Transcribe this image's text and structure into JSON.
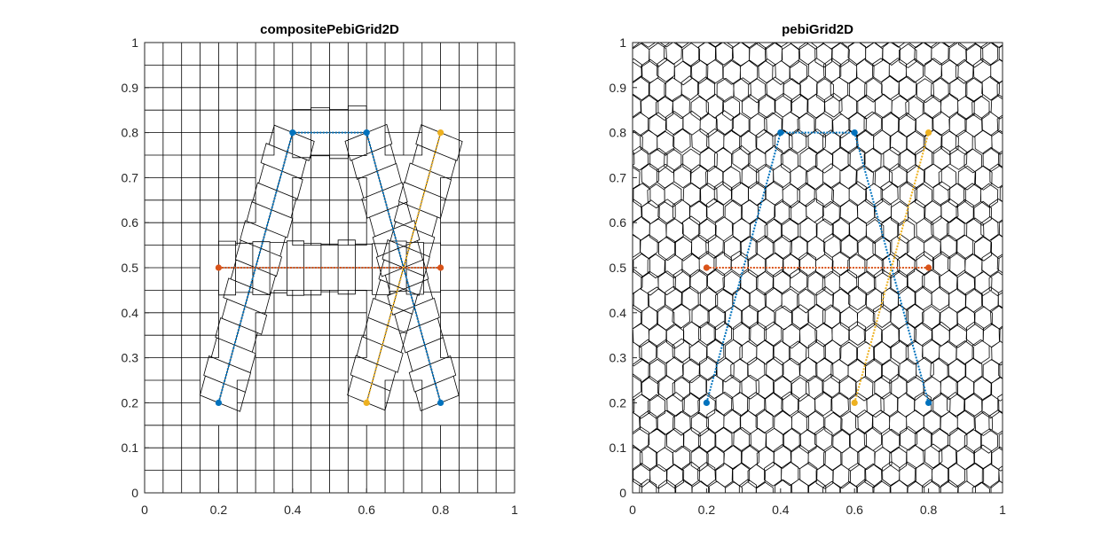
{
  "colors": {
    "blue": "#0072BD",
    "orange": "#D95319",
    "yellow": "#EDB120",
    "axis": "#262626",
    "mesh": "#000000"
  },
  "chart_data": [
    {
      "type": "scatter",
      "title": "compositePebiGrid2D",
      "xlabel": "",
      "ylabel": "",
      "xlim": [
        0,
        1
      ],
      "ylim": [
        0,
        1
      ],
      "x_ticks": [
        "0",
        "0.2",
        "0.4",
        "0.6",
        "0.8",
        "1"
      ],
      "y_ticks": [
        "0",
        "0.1",
        "0.2",
        "0.3",
        "0.4",
        "0.5",
        "0.6",
        "0.7",
        "0.8",
        "0.9",
        "1"
      ],
      "grid_type": "composite",
      "series": [
        {
          "color": "blue",
          "x": [
            0.2,
            0.4,
            0.6,
            0.8
          ],
          "y": [
            0.2,
            0.8,
            0.8,
            0.2
          ]
        },
        {
          "color": "orange",
          "x": [
            0.2,
            0.8
          ],
          "y": [
            0.5,
            0.5
          ]
        },
        {
          "color": "yellow",
          "x": [
            0.6,
            0.8
          ],
          "y": [
            0.2,
            0.8
          ]
        }
      ]
    },
    {
      "type": "scatter",
      "title": "pebiGrid2D",
      "xlabel": "",
      "ylabel": "",
      "xlim": [
        0,
        1
      ],
      "ylim": [
        0,
        1
      ],
      "x_ticks": [
        "0",
        "0.2",
        "0.4",
        "0.6",
        "0.8",
        "1"
      ],
      "y_ticks": [
        "0",
        "0.1",
        "0.2",
        "0.3",
        "0.4",
        "0.5",
        "0.6",
        "0.7",
        "0.8",
        "0.9",
        "1"
      ],
      "grid_type": "pebi",
      "series": [
        {
          "color": "blue",
          "x": [
            0.2,
            0.4,
            0.6,
            0.8
          ],
          "y": [
            0.2,
            0.8,
            0.8,
            0.2
          ]
        },
        {
          "color": "orange",
          "x": [
            0.2,
            0.8
          ],
          "y": [
            0.5,
            0.5
          ]
        },
        {
          "color": "yellow",
          "x": [
            0.6,
            0.8
          ],
          "y": [
            0.2,
            0.8
          ]
        }
      ]
    }
  ]
}
